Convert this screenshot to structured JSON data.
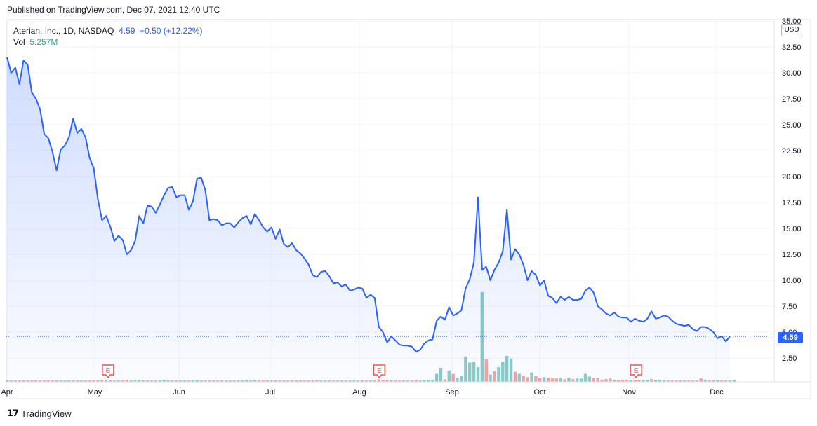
{
  "header": {
    "published": "Published on TradingView.com, Dec 07, 2021 12:40 UTC"
  },
  "legend": {
    "symbol": "Aterian, Inc., 1D, NASDAQ",
    "price": "4.59",
    "change": "+0.50 (+12.22%)",
    "vol_label": "Vol",
    "vol_value": "5.257M"
  },
  "price_axis": {
    "currency": "USD",
    "last_price": "4.59"
  },
  "footer": {
    "brand": "TradingView"
  },
  "colors": {
    "line": "#2962ff",
    "vol_up": "#26a69a",
    "vol_down": "#ef5350",
    "earnings": "#ef5350"
  },
  "chart_data": {
    "type": "area",
    "ylim": [
      0,
      35
    ],
    "y_ticks": [
      "2.50",
      "5.00",
      "7.50",
      "10.00",
      "12.50",
      "15.00",
      "17.50",
      "20.00",
      "22.50",
      "25.00",
      "27.50",
      "30.00",
      "32.50",
      "35.00"
    ],
    "x_ticks": [
      "Apr",
      "May",
      "Jun",
      "Jul",
      "Aug",
      "Sep",
      "Oct",
      "Nov",
      "Dec"
    ],
    "earnings_markers": [
      {
        "label": "E",
        "t": 0.13
      },
      {
        "label": "E",
        "t": 0.51
      },
      {
        "label": "E",
        "t": 0.87
      }
    ],
    "price_series": [
      31.5,
      30.0,
      30.5,
      28.9,
      31.2,
      30.8,
      28.1,
      27.5,
      26.5,
      24.1,
      23.7,
      22.4,
      20.6,
      22.6,
      23.0,
      23.8,
      25.6,
      24.2,
      24.6,
      23.8,
      21.8,
      20.8,
      17.8,
      15.8,
      16.2,
      15.2,
      13.8,
      14.3,
      13.9,
      12.5,
      12.9,
      13.8,
      16.2,
      15.5,
      17.2,
      17.1,
      16.5,
      17.3,
      18.2,
      18.9,
      19.0,
      18.0,
      18.2,
      18.2,
      16.8,
      17.6,
      19.8,
      19.9,
      18.7,
      15.8,
      15.9,
      15.8,
      15.3,
      15.5,
      15.5,
      15.1,
      15.6,
      16.0,
      16.2,
      15.4,
      16.4,
      15.8,
      15.1,
      14.7,
      15.1,
      14.0,
      14.9,
      13.5,
      13.2,
      13.6,
      12.9,
      12.6,
      12.1,
      11.5,
      10.5,
      10.3,
      10.8,
      10.9,
      10.4,
      9.7,
      9.8,
      9.4,
      9.6,
      9.0,
      9.1,
      9.3,
      9.2,
      8.3,
      8.6,
      8.3,
      5.5,
      5.0,
      4.0,
      4.6,
      4.2,
      3.8,
      3.7,
      3.7,
      3.6,
      3.1,
      3.3,
      3.9,
      4.2,
      4.3,
      6.1,
      6.5,
      6.2,
      7.4,
      6.6,
      6.8,
      7.1,
      9.2,
      10.1,
      11.7,
      18.0,
      11.0,
      11.3,
      10.0,
      11.0,
      11.7,
      12.8,
      16.8,
      12.0,
      13.0,
      12.5,
      11.5,
      10.0,
      10.9,
      10.5,
      9.5,
      10.0,
      8.5,
      8.3,
      7.8,
      8.4,
      8.1,
      8.4,
      8.1,
      8.1,
      8.2,
      9.0,
      9.3,
      8.8,
      7.5,
      7.2,
      6.8,
      6.6,
      6.9,
      6.5,
      6.4,
      6.4,
      6.0,
      6.3,
      6.1,
      6.0,
      6.3,
      7.0,
      6.3,
      6.4,
      6.6,
      6.5,
      6.1,
      5.8,
      5.7,
      5.6,
      5.7,
      5.3,
      5.1,
      5.5,
      5.5,
      5.3,
      5.0,
      4.4,
      4.6,
      4.1,
      4.59
    ],
    "volume_series": [
      0.2,
      0.2,
      0.2,
      0.2,
      0.2,
      0.2,
      0.2,
      0.2,
      0.2,
      0.2,
      0.2,
      0.2,
      0.2,
      0.2,
      0.2,
      0.2,
      0.2,
      0.2,
      0.2,
      0.2,
      0.2,
      0.2,
      0.2,
      0.3,
      0.3,
      0.2,
      0.2,
      0.2,
      0.2,
      0.3,
      0.2,
      0.2,
      0.3,
      0.2,
      0.2,
      0.2,
      0.2,
      0.2,
      0.3,
      0.2,
      0.2,
      0.2,
      0.2,
      0.2,
      0.2,
      0.2,
      0.3,
      0.2,
      0.2,
      0.2,
      0.2,
      0.2,
      0.2,
      0.2,
      0.2,
      0.2,
      0.2,
      0.2,
      0.3,
      0.2,
      0.3,
      0.2,
      0.2,
      0.2,
      0.2,
      0.2,
      0.2,
      0.2,
      0.2,
      0.2,
      0.2,
      0.2,
      0.2,
      0.2,
      0.2,
      0.2,
      0.2,
      0.2,
      0.2,
      0.2,
      0.2,
      0.2,
      0.2,
      0.2,
      0.2,
      0.2,
      0.2,
      0.2,
      0.2,
      0.2,
      0.4,
      0.3,
      0.3,
      0.3,
      0.2,
      0.2,
      0.2,
      0.2,
      0.2,
      0.3,
      0.2,
      0.3,
      0.3,
      0.3,
      1.2,
      2.1,
      0.4,
      1.7,
      1.2,
      0.6,
      0.9,
      3.8,
      2.9,
      3.0,
      2.2,
      13.5,
      3.4,
      1.1,
      1.6,
      2.2,
      3.0,
      3.9,
      3.5,
      1.5,
      1.2,
      0.9,
      0.7,
      1.4,
      0.9,
      0.6,
      0.7,
      0.6,
      0.5,
      0.5,
      0.6,
      0.4,
      0.6,
      0.4,
      0.5,
      0.5,
      1.2,
      0.8,
      0.6,
      0.6,
      0.3,
      0.4,
      0.5,
      0.3,
      0.3,
      0.3,
      0.3,
      0.3,
      0.3,
      0.3,
      0.3,
      0.3,
      0.4,
      0.3,
      0.3,
      0.3,
      0.2,
      0.2,
      0.2,
      0.2,
      0.2,
      0.2,
      0.2,
      0.2,
      0.5,
      0.3,
      0.2,
      0.2,
      0.3,
      0.2,
      0.2,
      0.2,
      0.3
    ],
    "volume_up": [
      1,
      1,
      0,
      0,
      1,
      0,
      0,
      0,
      0,
      0,
      0,
      0,
      0,
      1,
      1,
      1,
      1,
      0,
      1,
      0,
      0,
      0,
      0,
      0,
      1,
      0,
      0,
      1,
      0,
      0,
      1,
      1,
      1,
      0,
      1,
      0,
      0,
      1,
      1,
      1,
      1,
      0,
      1,
      1,
      0,
      1,
      1,
      1,
      0,
      0,
      1,
      0,
      0,
      1,
      1,
      0,
      1,
      1,
      1,
      0,
      1,
      0,
      0,
      0,
      1,
      0,
      1,
      0,
      0,
      1,
      0,
      0,
      0,
      0,
      0,
      0,
      1,
      1,
      0,
      0,
      1,
      0,
      1,
      0,
      1,
      1,
      0,
      0,
      1,
      0,
      0,
      0,
      0,
      1,
      0,
      0,
      0,
      1,
      0,
      0,
      1,
      1,
      1,
      1,
      1,
      1,
      0,
      1,
      0,
      1,
      1,
      1,
      1,
      1,
      1,
      1,
      0,
      1,
      0,
      1,
      1,
      1,
      1,
      0,
      1,
      0,
      0,
      1,
      0,
      0,
      1,
      0,
      0,
      0,
      1,
      0,
      1,
      0,
      1,
      1,
      1,
      1,
      0,
      0,
      0,
      0,
      0,
      1,
      0,
      0,
      0,
      1,
      0,
      0,
      1,
      1,
      0,
      1,
      1,
      1,
      0,
      0,
      0,
      0,
      1,
      0,
      0,
      1,
      0,
      1,
      0,
      0,
      1,
      0,
      0,
      1,
      1
    ]
  }
}
